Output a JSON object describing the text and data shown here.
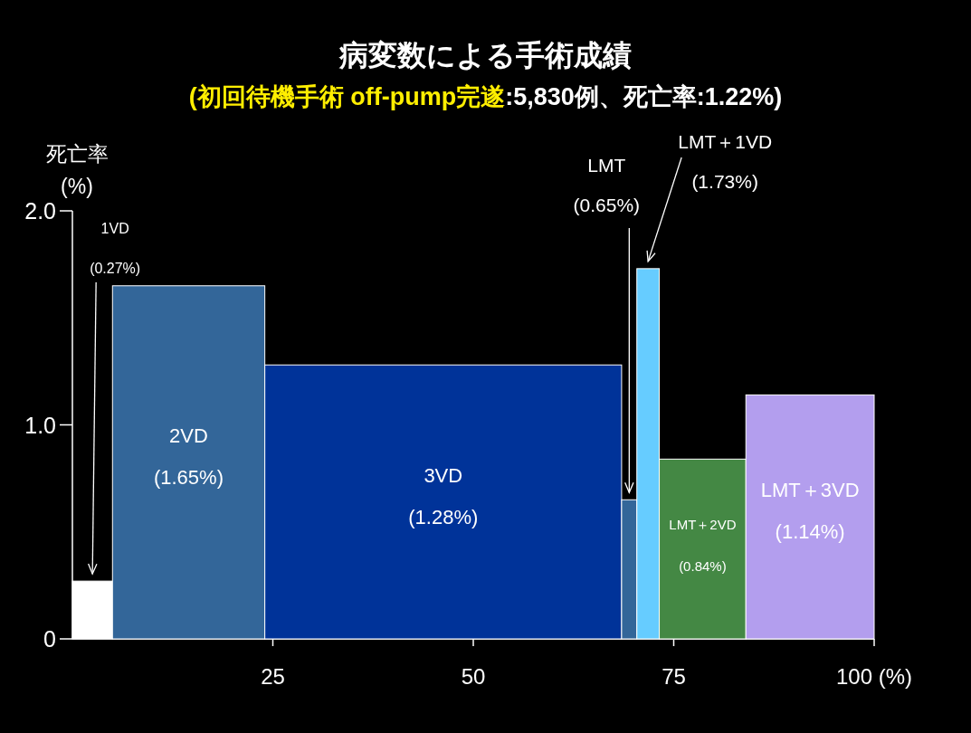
{
  "chart_data": {
    "type": "histogram",
    "title": "病変数による手術成績",
    "subtitle": "(初回待機手術 off-pump完遂:5,830例、死亡率:1.22%)",
    "ylabel": "死亡率\n(%)",
    "bins": [
      0,
      5,
      24,
      68.5,
      70.4,
      73.2,
      84,
      100
    ],
    "values": [
      0.27,
      1.65,
      1.28,
      0.65,
      1.73,
      0.84,
      1.14
    ],
    "categories": [
      "1VD",
      "2VD",
      "3VD",
      "LMT",
      "LMT＋1VD",
      "LMT＋2VD",
      "LMT＋3VD"
    ],
    "value_labels": [
      "(0.27%)",
      "(1.65%)",
      "(1.28%)",
      "(0.65%)",
      "(1.73%)",
      "(0.84%)",
      "(1.14%)"
    ],
    "colors": [
      "#ffffff",
      "#336699",
      "#003399",
      "#336699",
      "#66ccff",
      "#448844",
      "#b39eee"
    ],
    "xlim": [
      0,
      100
    ],
    "xticks": [
      25,
      50,
      75,
      {
        "value": 100,
        "label": "100 (%)"
      }
    ],
    "ylim": [
      0,
      2.0
    ],
    "yticks": [
      {
        "value": 0,
        "label": "0"
      },
      {
        "value": 1,
        "label": "1.0"
      },
      {
        "value": 2,
        "label": "2.0"
      }
    ],
    "grid": false
  }
}
